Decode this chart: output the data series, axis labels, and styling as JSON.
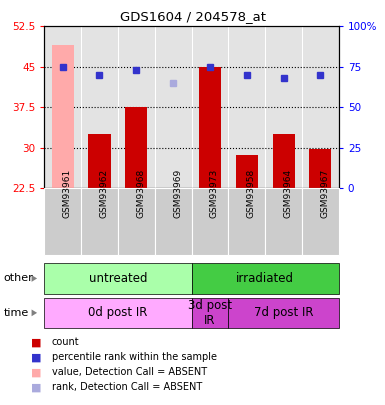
{
  "title": "GDS1604 / 204578_at",
  "samples": [
    "GSM93961",
    "GSM93962",
    "GSM93968",
    "GSM93969",
    "GSM93973",
    "GSM93958",
    "GSM93964",
    "GSM93967"
  ],
  "count_values": [
    49.0,
    32.5,
    37.5,
    22.65,
    45.0,
    28.7,
    32.5,
    29.7
  ],
  "count_absent": [
    true,
    false,
    false,
    false,
    false,
    false,
    false,
    false
  ],
  "rank_values": [
    75.0,
    70.0,
    73.0,
    65.0,
    75.0,
    70.0,
    68.0,
    70.0
  ],
  "rank_absent": [
    false,
    false,
    false,
    true,
    false,
    false,
    false,
    false
  ],
  "ylim_left": [
    22.5,
    52.5
  ],
  "ylim_right": [
    0,
    100
  ],
  "yticks_left": [
    22.5,
    30.0,
    37.5,
    45.0,
    52.5
  ],
  "yticks_right": [
    0,
    25,
    50,
    75,
    100
  ],
  "ytick_labels_left": [
    "22.5",
    "30",
    "37.5",
    "45",
    "52.5"
  ],
  "ytick_labels_right": [
    "0",
    "25",
    "50",
    "75",
    "100%"
  ],
  "bar_color_normal": "#cc0000",
  "bar_color_absent": "#ffaaaa",
  "rank_color_normal": "#3333cc",
  "rank_color_absent": "#aaaadd",
  "group_other": [
    {
      "label": "untreated",
      "start": 0,
      "end": 4,
      "color": "#aaffaa"
    },
    {
      "label": "irradiated",
      "start": 4,
      "end": 8,
      "color": "#44cc44"
    }
  ],
  "group_time": [
    {
      "label": "0d post IR",
      "start": 0,
      "end": 4,
      "color": "#ffaaff"
    },
    {
      "label": "3d post\nIR",
      "start": 4,
      "end": 5,
      "color": "#cc44cc"
    },
    {
      "label": "7d post IR",
      "start": 5,
      "end": 8,
      "color": "#cc44cc"
    }
  ],
  "legend_items": [
    {
      "label": "count",
      "color": "#cc0000"
    },
    {
      "label": "percentile rank within the sample",
      "color": "#3333cc"
    },
    {
      "label": "value, Detection Call = ABSENT",
      "color": "#ffaaaa"
    },
    {
      "label": "rank, Detection Call = ABSENT",
      "color": "#aaaadd"
    }
  ],
  "fig_width": 3.85,
  "fig_height": 4.05,
  "dpi": 100
}
